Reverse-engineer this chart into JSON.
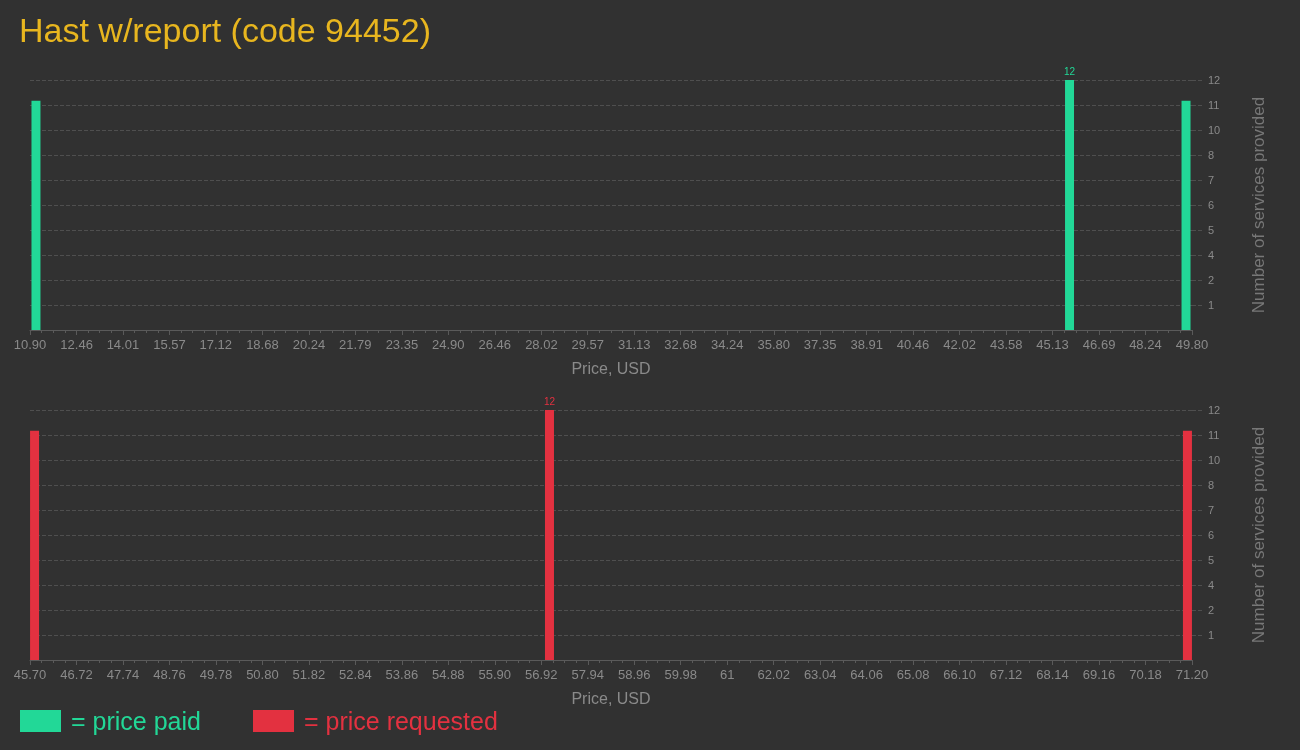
{
  "chart_data": [
    {
      "type": "bar",
      "title": "Hast w/report (code 94452)",
      "xlabel": "Price, USD",
      "ylabel": "Number of services provided",
      "x": [
        11.1,
        45.7,
        49.6
      ],
      "series": [
        {
          "name": "= price paid",
          "color": "#22d897",
          "values": [
            11,
            12,
            11
          ],
          "value_labels": [
            null,
            "12",
            null
          ]
        }
      ],
      "xlim": [
        10.9,
        49.8
      ],
      "xticks": [
        {
          "value": 10.9,
          "label": "10.90"
        },
        12.46,
        14.01,
        15.57,
        17.12,
        18.68,
        20.24,
        21.79,
        23.35,
        {
          "value": 24.9,
          "label": "24.90"
        },
        26.46,
        28.02,
        29.57,
        31.13,
        32.68,
        34.24,
        {
          "value": 35.8,
          "label": "35.80"
        },
        37.35,
        38.91,
        40.46,
        42.02,
        43.58,
        45.13,
        46.69,
        48.24,
        {
          "value": 49.8,
          "label": "49.80"
        }
      ],
      "ylim": [
        0,
        12
      ],
      "yticks": [
        {
          "value": 1.2,
          "label": "1"
        },
        {
          "value": 2.4,
          "label": "2"
        },
        {
          "value": 3.6,
          "label": "4"
        },
        {
          "value": 4.8,
          "label": "5"
        },
        {
          "value": 6,
          "label": "6"
        },
        {
          "value": 7.2,
          "label": "7"
        },
        {
          "value": 8.4,
          "label": "8"
        },
        {
          "value": 9.6,
          "label": "10"
        },
        {
          "value": 10.8,
          "label": "11"
        },
        {
          "value": 12,
          "label": "12"
        }
      ],
      "grid": "y",
      "legend": "bottom left"
    },
    {
      "type": "bar",
      "xlabel": "Price, USD",
      "ylabel": "Number of services provided",
      "x": [
        45.8,
        57.1,
        71.1
      ],
      "series": [
        {
          "name": "= price requested",
          "color": "#e33140",
          "values": [
            11,
            12,
            11
          ],
          "value_labels": [
            null,
            "12",
            null
          ]
        }
      ],
      "xlim": [
        45.7,
        71.2
      ],
      "xticks": [
        {
          "value": 45.7,
          "label": "45.70"
        },
        46.72,
        47.74,
        48.76,
        49.78,
        {
          "value": 50.8,
          "label": "50.80"
        },
        51.82,
        52.84,
        53.86,
        54.88,
        {
          "value": 55.9,
          "label": "55.90"
        },
        56.92,
        57.94,
        58.96,
        59.98,
        61,
        62.02,
        63.04,
        64.06,
        65.08,
        {
          "value": 66.1,
          "label": "66.10"
        },
        67.12,
        68.14,
        69.16,
        70.18,
        {
          "value": 71.2,
          "label": "71.20"
        }
      ],
      "ylim": [
        0,
        12
      ],
      "yticks": [
        {
          "value": 1.2,
          "label": "1"
        },
        {
          "value": 2.4,
          "label": "2"
        },
        {
          "value": 3.6,
          "label": "4"
        },
        {
          "value": 4.8,
          "label": "5"
        },
        {
          "value": 6,
          "label": "6"
        },
        {
          "value": 7.2,
          "label": "7"
        },
        {
          "value": 8.4,
          "label": "8"
        },
        {
          "value": 9.6,
          "label": "10"
        },
        {
          "value": 10.8,
          "label": "11"
        },
        {
          "value": 12,
          "label": "12"
        }
      ],
      "grid": "y",
      "legend": "bottom left"
    }
  ]
}
